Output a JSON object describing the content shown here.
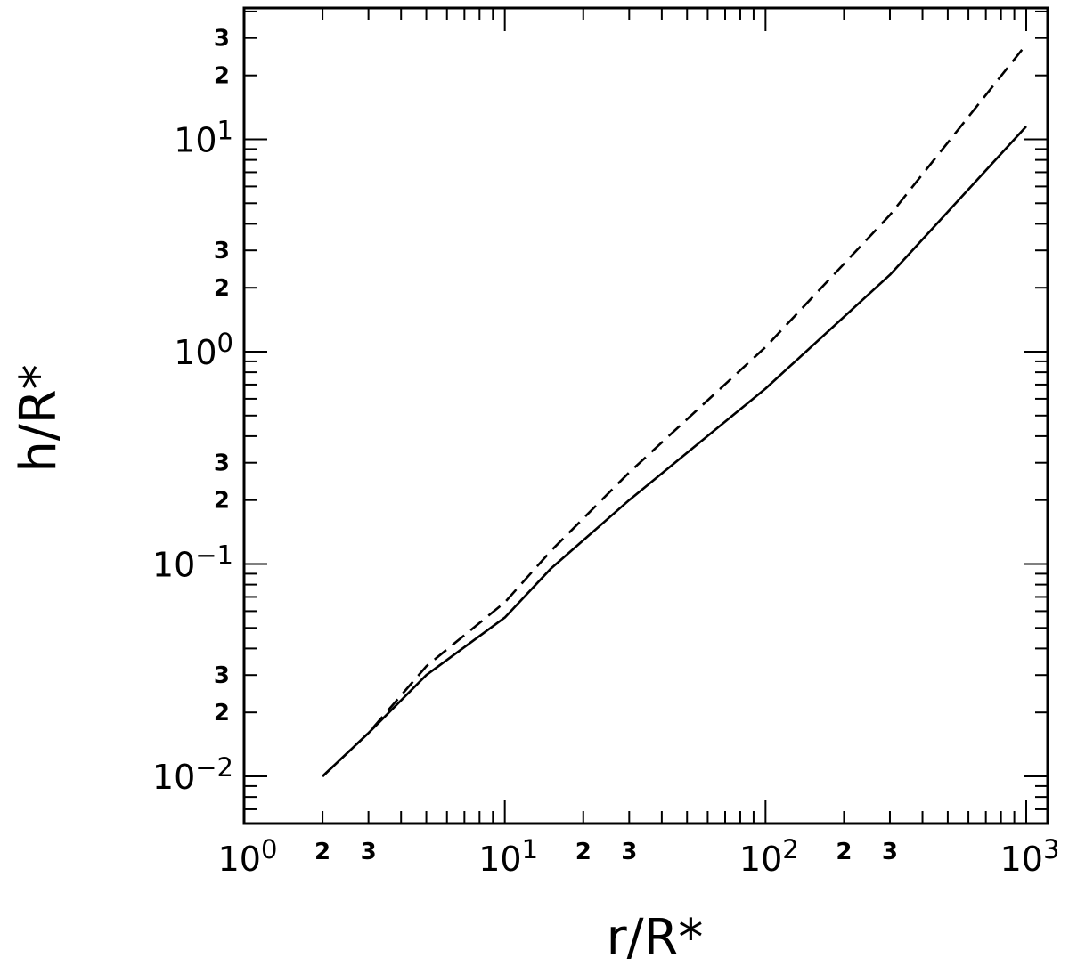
{
  "chart_data": {
    "type": "line",
    "title": "",
    "xlabel": "r/R*",
    "ylabel": "h/R*",
    "xscale": "log",
    "yscale": "log",
    "xlim": [
      1,
      1000
    ],
    "ylim": [
      0.0063,
      40
    ],
    "grid": false,
    "legend": "none",
    "x_ticks": {
      "major": [
        {
          "value": 1,
          "base": "10",
          "exp": "0"
        },
        {
          "value": 10,
          "base": "10",
          "exp": "1"
        },
        {
          "value": 100,
          "base": "10",
          "exp": "2"
        },
        {
          "value": 1000,
          "base": "10",
          "exp": "3"
        }
      ],
      "minor_labeled": [
        {
          "value": 2,
          "label": "2"
        },
        {
          "value": 3,
          "label": "3"
        },
        {
          "value": 20,
          "label": "2"
        },
        {
          "value": 30,
          "label": "3"
        },
        {
          "value": 200,
          "label": "2"
        },
        {
          "value": 300,
          "label": "3"
        }
      ]
    },
    "y_ticks": {
      "major": [
        {
          "value": 0.01,
          "base": "10",
          "exp": "−2"
        },
        {
          "value": 0.1,
          "base": "10",
          "exp": "−1"
        },
        {
          "value": 1,
          "base": "10",
          "exp": "0"
        },
        {
          "value": 10,
          "base": "10",
          "exp": "1"
        }
      ],
      "minor_labeled": [
        {
          "value": 0.02,
          "label": "2"
        },
        {
          "value": 0.03,
          "label": "3"
        },
        {
          "value": 0.2,
          "label": "2"
        },
        {
          "value": 0.3,
          "label": "3"
        },
        {
          "value": 2,
          "label": "2"
        },
        {
          "value": 3,
          "label": "3"
        },
        {
          "value": 20,
          "label": "2"
        },
        {
          "value": 30,
          "label": "3"
        }
      ]
    },
    "series": [
      {
        "style": "solid",
        "color": "#000000",
        "x": [
          2,
          3,
          5,
          10,
          15,
          30,
          100,
          300,
          1000
        ],
        "y": [
          0.01,
          0.016,
          0.03,
          0.056,
          0.095,
          0.2,
          0.67,
          2.3,
          11.5
        ]
      },
      {
        "style": "dashed",
        "color": "#000000",
        "x": [
          2,
          3,
          5,
          10,
          15,
          30,
          100,
          300,
          1000
        ],
        "y": [
          0.01,
          0.016,
          0.033,
          0.066,
          0.115,
          0.27,
          1.05,
          4.4,
          28
        ]
      }
    ]
  }
}
